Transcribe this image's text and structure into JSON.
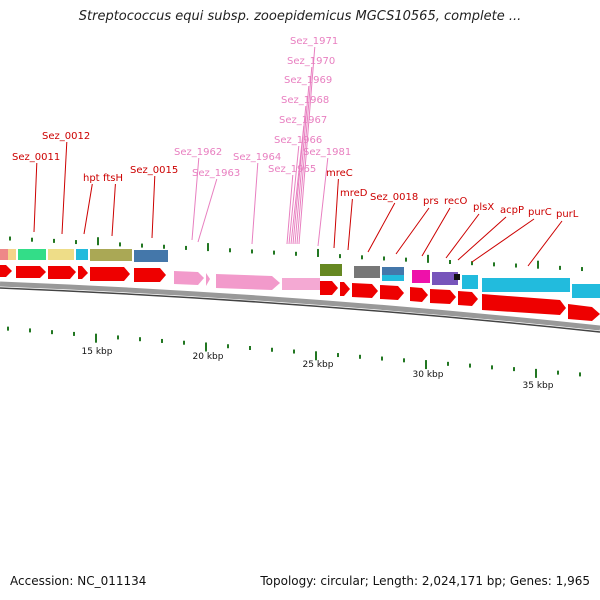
{
  "title": "Streptococcus equi subsp. zooepidemicus MGCS10565, complete ...",
  "footer": {
    "accession": "Accession: NC_011134",
    "summary": "Topology: circular; Length: 2,024,171 bp; Genes: 1,965"
  },
  "colors": {
    "label_red": "#cc0000",
    "label_pink": "#e87fc0",
    "cds_red": "#ee0000",
    "backbone": "#999999",
    "tick_green": "#227722"
  },
  "scale_labels": [
    "15 kbp",
    "20 kbp",
    "25 kbp",
    "30 kbp",
    "35 kbp"
  ],
  "gene_labels": [
    {
      "name": "Sez_0011",
      "color": "red"
    },
    {
      "name": "Sez_0012",
      "color": "red"
    },
    {
      "name": "hpt",
      "color": "red"
    },
    {
      "name": "ftsH",
      "color": "red"
    },
    {
      "name": "Sez_0015",
      "color": "red"
    },
    {
      "name": "Sez_1962",
      "color": "pink"
    },
    {
      "name": "Sez_1963",
      "color": "pink"
    },
    {
      "name": "Sez_1964",
      "color": "pink"
    },
    {
      "name": "Sez_1965",
      "color": "pink"
    },
    {
      "name": "Sez_1966",
      "color": "pink"
    },
    {
      "name": "Sez_1967",
      "color": "pink"
    },
    {
      "name": "Sez_1968",
      "color": "pink"
    },
    {
      "name": "Sez_1969",
      "color": "pink"
    },
    {
      "name": "Sez_1970",
      "color": "pink"
    },
    {
      "name": "Sez_1971",
      "color": "pink"
    },
    {
      "name": "Sez_1981",
      "color": "pink"
    },
    {
      "name": "mreC",
      "color": "red"
    },
    {
      "name": "mreD",
      "color": "red"
    },
    {
      "name": "Sez_0018",
      "color": "red"
    },
    {
      "name": "prs",
      "color": "red"
    },
    {
      "name": "recO",
      "color": "red"
    },
    {
      "name": "plsX",
      "color": "red"
    },
    {
      "name": "acpP",
      "color": "red"
    },
    {
      "name": "purC",
      "color": "red"
    },
    {
      "name": "purL",
      "color": "red"
    }
  ]
}
